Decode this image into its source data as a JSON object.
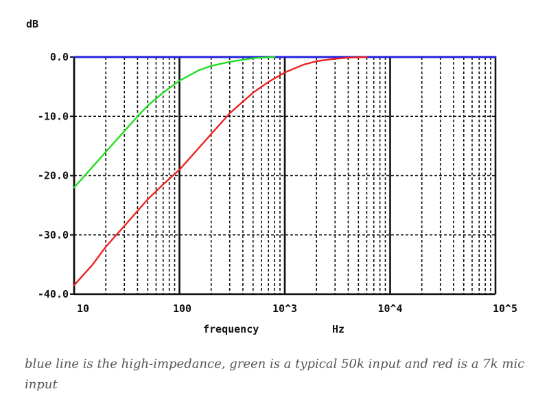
{
  "chart_data": {
    "type": "line",
    "xscale": "log",
    "xlim": [
      10,
      100000
    ],
    "ylim": [
      -40,
      0
    ],
    "ylabel": "dB",
    "xlabel": "frequency",
    "xunit": "Hz",
    "xticks": [
      "10",
      "100",
      "10^3",
      "10^4",
      "10^5"
    ],
    "yticks": [
      "0.0",
      "-10.0",
      "-20.0",
      "-30.0",
      "-40.0"
    ],
    "grid": true,
    "series": [
      {
        "color": "#2222dd",
        "x": [
          10,
          100000
        ],
        "y": [
          0,
          0
        ]
      },
      {
        "color": "#22dd22",
        "x": [
          10,
          15,
          20,
          30,
          40,
          50,
          70,
          100,
          150,
          200,
          300,
          500,
          800
        ],
        "y": [
          -22.0,
          -18.5,
          -16.0,
          -12.5,
          -10.0,
          -8.2,
          -6.0,
          -4.0,
          -2.3,
          -1.5,
          -0.8,
          -0.2,
          0.0
        ]
      },
      {
        "color": "#ee2222",
        "x": [
          10,
          15,
          20,
          30,
          50,
          70,
          100,
          150,
          200,
          300,
          500,
          700,
          1000,
          1500,
          2000,
          3000,
          4000,
          5000,
          6000
        ],
        "y": [
          -38.5,
          -35.0,
          -32.0,
          -28.5,
          -24.0,
          -21.5,
          -19.0,
          -15.5,
          -13.0,
          -9.5,
          -6.0,
          -4.2,
          -2.6,
          -1.3,
          -0.7,
          -0.3,
          -0.1,
          -0.05,
          0.0
        ]
      }
    ]
  },
  "caption": "blue line is the high-impedance, green is a typical 50k input and red is a 7k mic input"
}
